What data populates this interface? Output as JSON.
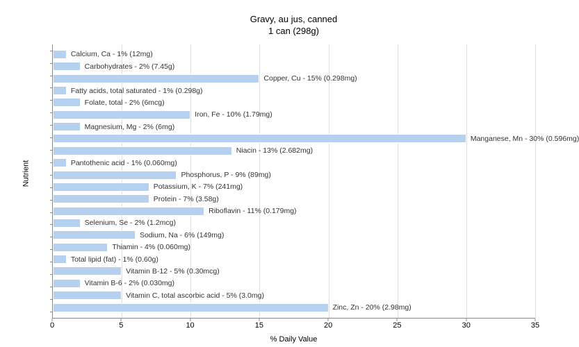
{
  "chart": {
    "type": "bar",
    "title_line1": "Gravy, au jus, canned",
    "title_line2": "1 can (298g)",
    "title_fontsize": 13,
    "xlabel": "% Daily Value",
    "ylabel": "Nutrient",
    "label_fontsize": 11,
    "xlim": [
      0,
      35
    ],
    "xtick_step": 5,
    "xticks": [
      0,
      5,
      10,
      15,
      20,
      25,
      30,
      35
    ],
    "bar_color": "#b6d0f0",
    "bar_border_color": "#ffffff",
    "grid_color": "#e0e0e0",
    "axis_color": "#888888",
    "background_color": "#ffffff",
    "text_color": "#333333",
    "tick_fontsize": 11,
    "data_label_fontsize": 10.5,
    "nutrients": [
      {
        "label": "Calcium, Ca - 1% (12mg)",
        "value": 1
      },
      {
        "label": "Carbohydrates - 2% (7.45g)",
        "value": 2
      },
      {
        "label": "Copper, Cu - 15% (0.298mg)",
        "value": 15
      },
      {
        "label": "Fatty acids, total saturated - 1% (0.298g)",
        "value": 1
      },
      {
        "label": "Folate, total - 2% (6mcg)",
        "value": 2
      },
      {
        "label": "Iron, Fe - 10% (1.79mg)",
        "value": 10
      },
      {
        "label": "Magnesium, Mg - 2% (6mg)",
        "value": 2
      },
      {
        "label": "Manganese, Mn - 30% (0.596mg)",
        "value": 30
      },
      {
        "label": "Niacin - 13% (2.682mg)",
        "value": 13
      },
      {
        "label": "Pantothenic acid - 1% (0.060mg)",
        "value": 1
      },
      {
        "label": "Phosphorus, P - 9% (89mg)",
        "value": 9
      },
      {
        "label": "Potassium, K - 7% (241mg)",
        "value": 7
      },
      {
        "label": "Protein - 7% (3.58g)",
        "value": 7
      },
      {
        "label": "Riboflavin - 11% (0.179mg)",
        "value": 11
      },
      {
        "label": "Selenium, Se - 2% (1.2mcg)",
        "value": 2
      },
      {
        "label": "Sodium, Na - 6% (149mg)",
        "value": 6
      },
      {
        "label": "Thiamin - 4% (0.060mg)",
        "value": 4
      },
      {
        "label": "Total lipid (fat) - 1% (0.60g)",
        "value": 1
      },
      {
        "label": "Vitamin B-12 - 5% (0.30mcg)",
        "value": 5
      },
      {
        "label": "Vitamin B-6 - 2% (0.030mg)",
        "value": 2
      },
      {
        "label": "Vitamin C, total ascorbic acid - 5% (3.0mg)",
        "value": 5
      },
      {
        "label": "Zinc, Zn - 20% (2.98mg)",
        "value": 20
      }
    ]
  }
}
